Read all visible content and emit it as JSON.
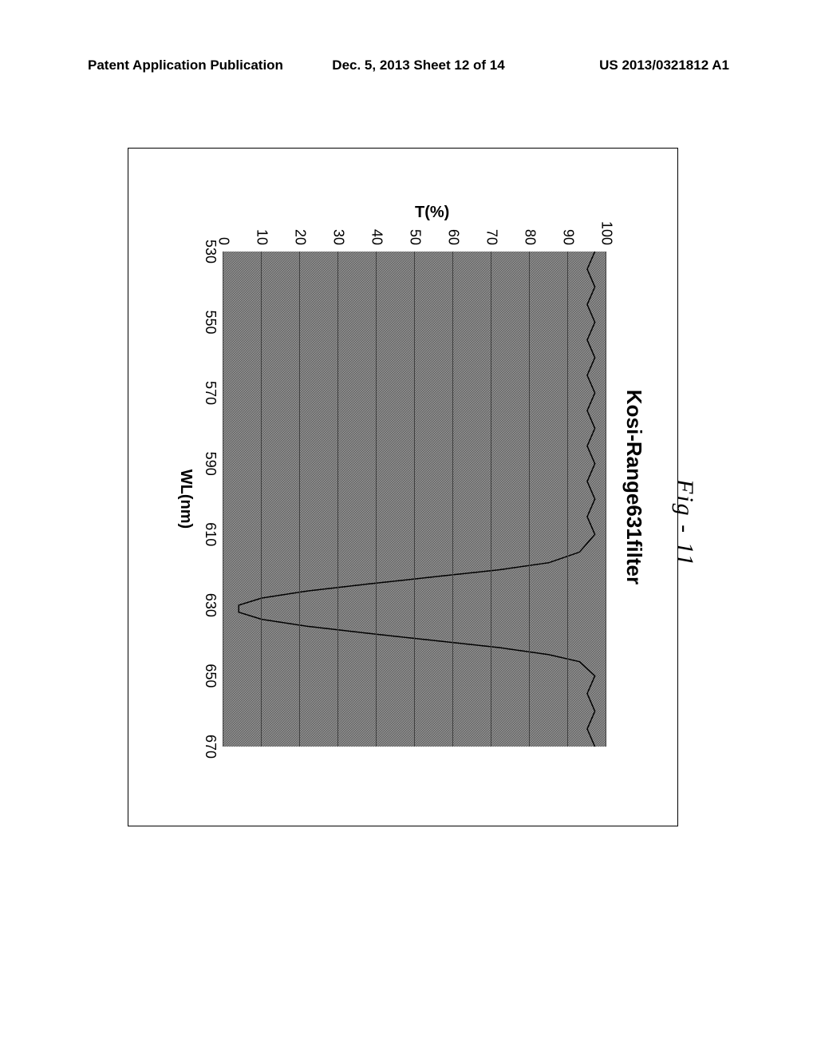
{
  "header": {
    "left": "Patent Application Publication",
    "mid": "Dec. 5, 2013  Sheet 12 of 14",
    "right": "US 2013/0321812 A1"
  },
  "figure_caption": "Fig - 11",
  "chart": {
    "type": "line",
    "title": "Kosi-Range631filter",
    "xlabel": "WL(nm)",
    "ylabel": "T(%)",
    "xlim": [
      530,
      670
    ],
    "ylim": [
      0,
      100
    ],
    "xticks": [
      530,
      550,
      570,
      590,
      610,
      630,
      650,
      670
    ],
    "yticks": [
      0,
      10,
      20,
      30,
      40,
      50,
      60,
      70,
      80,
      90,
      100
    ],
    "background_texture": "noise-gray",
    "grid_color": "#404040",
    "grid_on": true,
    "line_color": "#000000",
    "line_width": 1.5,
    "tick_fontsize": 18,
    "label_fontsize": 20,
    "title_fontsize": 26,
    "data": {
      "x": [
        530,
        535,
        540,
        545,
        550,
        555,
        560,
        565,
        570,
        575,
        580,
        585,
        590,
        595,
        600,
        605,
        610,
        615,
        618,
        620,
        622,
        624,
        626,
        628,
        630,
        632,
        634,
        636,
        638,
        640,
        642,
        644,
        646,
        650,
        655,
        660,
        665,
        670
      ],
      "y": [
        97,
        95,
        97,
        95,
        97,
        95,
        97,
        95,
        97,
        95,
        97,
        95,
        97,
        95,
        97,
        95,
        97,
        93,
        85,
        72,
        55,
        38,
        22,
        10,
        4,
        4,
        10,
        22,
        38,
        55,
        72,
        85,
        93,
        97,
        95,
        97,
        95,
        97
      ]
    }
  }
}
